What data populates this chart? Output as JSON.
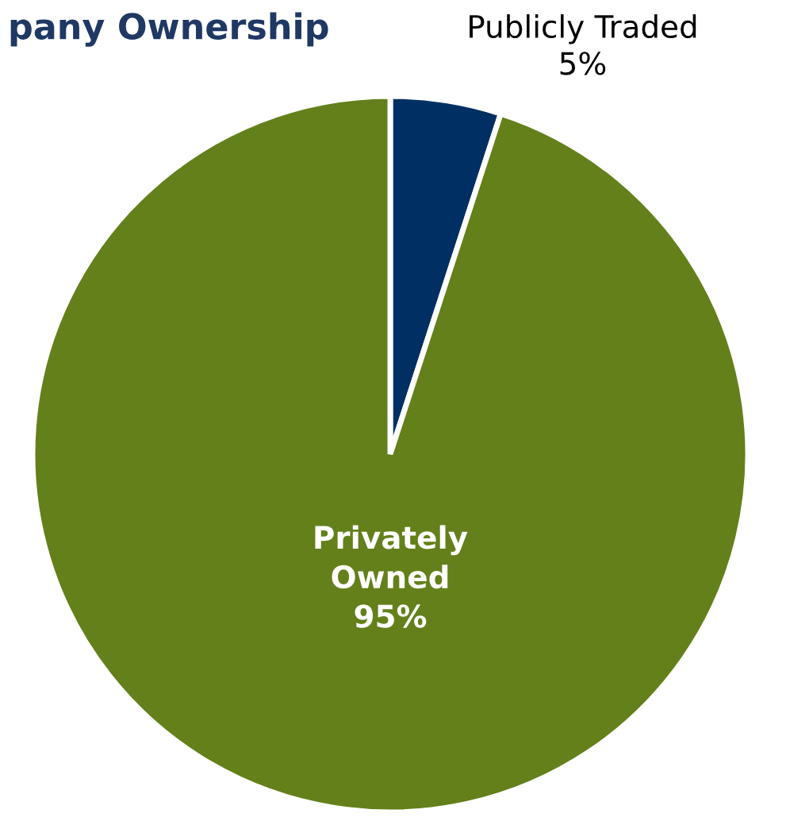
{
  "chart_data": {
    "type": "pie",
    "title": "pany Ownership",
    "categories": [
      "Publicly Traded",
      "Privately Owned"
    ],
    "values": [
      5,
      95
    ],
    "value_labels": [
      "5%",
      "95%"
    ],
    "colors": [
      "#003063",
      "#63801a"
    ]
  }
}
